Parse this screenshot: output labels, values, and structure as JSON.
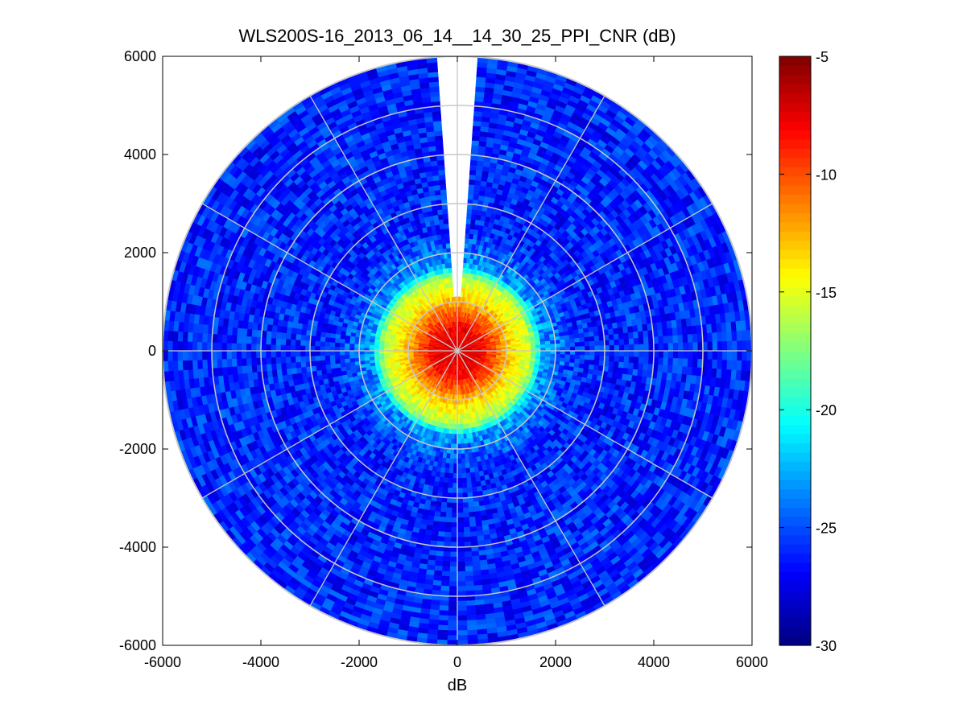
{
  "chart_data": {
    "type": "heatmap",
    "subtype": "polar-ppi",
    "title": "WLS200S-16_2013_06_14__14_30_25_PPI_CNR (dB)",
    "xlabel": "dB",
    "ylabel": "",
    "xlim": [
      -6000,
      6000
    ],
    "ylim": [
      -6000,
      6000
    ],
    "xticks": [
      "-6000",
      "-4000",
      "-2000",
      "0",
      "2000",
      "4000",
      "6000"
    ],
    "yticks": [
      "6000",
      "4000",
      "2000",
      "0",
      "-2000",
      "-4000",
      "-6000"
    ],
    "max_range": 6000,
    "range_rings": [
      1000,
      2000,
      3000,
      4000,
      5000,
      6000
    ],
    "spokes_deg": [
      0,
      30,
      60,
      90,
      120,
      150,
      180,
      210,
      240,
      270,
      300,
      330
    ],
    "data_gap_azimuth_deg": [
      -4,
      4
    ],
    "colorbar": {
      "min": -30,
      "max": -5,
      "colormap": "jet",
      "ticks": [
        "-5",
        "-10",
        "-15",
        "-20",
        "-25",
        "-30"
      ]
    },
    "cnr_profile": [
      {
        "range": 0,
        "cnr": -7
      },
      {
        "range": 500,
        "cnr": -8
      },
      {
        "range": 850,
        "cnr": -11
      },
      {
        "range": 1150,
        "cnr": -14
      },
      {
        "range": 1500,
        "cnr": -16
      },
      {
        "range": 1750,
        "cnr": -23
      },
      {
        "range": 2500,
        "cnr": -26
      },
      {
        "range": 6000,
        "cnr": -26
      }
    ],
    "grid": "on",
    "grid_color": "#c8c8c8"
  }
}
